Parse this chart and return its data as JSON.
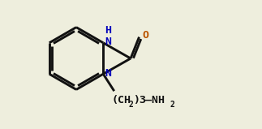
{
  "bg_color": "#eeeedd",
  "line_color": "#111111",
  "N_color": "#0000bb",
  "O_color": "#bb5500",
  "lw": 2.1,
  "fs": 9.5,
  "fs_sm": 7.0,
  "xlim": [
    -0.5,
    9.0
  ],
  "ylim": [
    1.2,
    6.5
  ]
}
